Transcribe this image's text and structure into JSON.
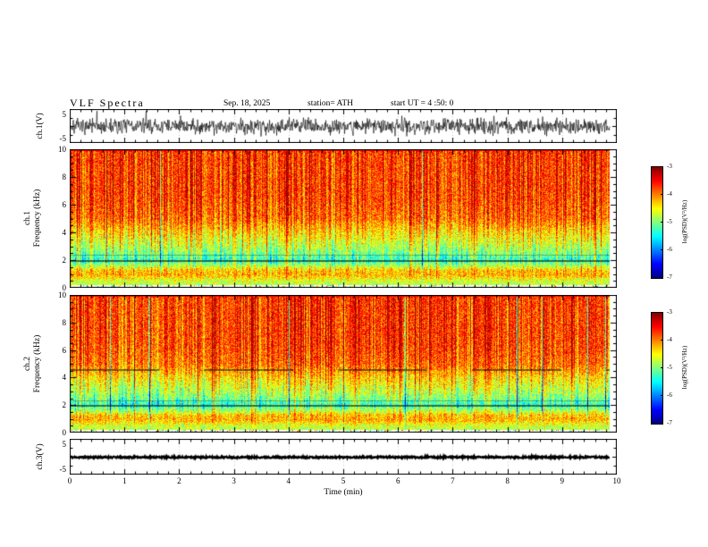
{
  "header": {
    "title": "VLF Spectra",
    "date": "Sep. 18, 2025",
    "station": "station= ATH",
    "start_ut": "start UT =  4 :50: 0"
  },
  "x_axis": {
    "label": "Time (min)",
    "tick_labels": [
      "0",
      "1",
      "2",
      "3",
      "4",
      "5",
      "6",
      "7",
      "8",
      "9",
      "10"
    ]
  },
  "panels": [
    {
      "name": "ch1_waveform",
      "ylabel": "ch.1(V)",
      "ytick_labels": [
        "5",
        "-5"
      ]
    },
    {
      "name": "ch1_spectrogram",
      "ylabel_line1": "ch.1",
      "ylabel_line2": "Frequency (kHz)",
      "ytick_labels": [
        "10",
        "8",
        "6",
        "4",
        "2",
        "0"
      ]
    },
    {
      "name": "ch2_spectrogram",
      "ylabel_line1": "ch.2",
      "ylabel_line2": "Frequency (kHz)",
      "ytick_labels": [
        "10",
        "8",
        "6",
        "4",
        "2",
        "0"
      ]
    },
    {
      "name": "ch3_waveform",
      "ylabel": "ch.3(V)",
      "ytick_labels": [
        "5",
        "-5"
      ]
    }
  ],
  "colorbar": {
    "label": "log(PSD)(V²/Hz)",
    "tick_labels": [
      "-3",
      "-4",
      "-5",
      "-6",
      "-7"
    ]
  },
  "chart_data": [
    {
      "type": "line",
      "panel": "ch.1 time series",
      "xlabel": "Time (min)",
      "xlim": [
        0,
        10
      ],
      "ylabel": "ch.1(V)",
      "ylim": [
        -5,
        5
      ],
      "yticks": [
        5,
        -5
      ],
      "description": "Dense black broadband-noise waveform, zero mean, peak amplitude about ±3.5 V, roughly constant envelope over the full 10 minutes"
    },
    {
      "type": "heatmap",
      "panel": "ch.1 spectrogram",
      "xlabel": "Time (min)",
      "xlim": [
        0,
        10
      ],
      "ylabel": "ch.1 Frequency (kHz)",
      "ylim": [
        0,
        10
      ],
      "yticks": [
        0,
        2,
        4,
        6,
        8,
        10
      ],
      "colorbar": {
        "label": "log(PSD)(V²/Hz)",
        "range": [
          -7,
          -3
        ],
        "ticks": [
          -3,
          -4,
          -5,
          -6,
          -7
        ],
        "colormap": "jet (red = high PSD, blue = low PSD)"
      },
      "bands": [
        {
          "freq_khz": "4-10",
          "psd_log": "-3.3 to -4.2",
          "appearance": "red/orange speckle with vertical streak texture"
        },
        {
          "freq_khz": "2.5-4",
          "psd_log": "-4.5 to -5",
          "appearance": "yellow-green"
        },
        {
          "freq_khz": "1.8-2.3",
          "psd_log": "about -5.3",
          "appearance": "green-cyan, thin dark absorption line near 2.0 kHz"
        },
        {
          "freq_khz": "0.6-1.3",
          "psd_log": "about -4",
          "appearance": "bright yellow/orange band"
        },
        {
          "freq_khz": "0-0.3",
          "psd_log": "no data",
          "appearance": "white with sparse colored speckles"
        }
      ],
      "features": "Vertical impulsive sferic streaks spanning all frequencies, distributed across the whole 10 min record; data ends slightly before 10 min"
    },
    {
      "type": "heatmap",
      "panel": "ch.2 spectrogram",
      "xlabel": "Time (min)",
      "xlim": [
        0,
        10
      ],
      "ylabel": "ch.2 Frequency (kHz)",
      "ylim": [
        0,
        10
      ],
      "yticks": [
        0,
        2,
        4,
        6,
        8,
        10
      ],
      "colorbar": {
        "label": "log(PSD)(V²/Hz)",
        "range": [
          -7,
          -3
        ],
        "ticks": [
          -3,
          -4,
          -5,
          -6,
          -7
        ],
        "colormap": "jet (red = high PSD, blue = low PSD)"
      },
      "bands": [
        {
          "freq_khz": "4-10",
          "psd_log": "-3.3 to -4.2",
          "appearance": "red/orange speckle with vertical streak texture"
        },
        {
          "freq_khz": "2.5-4",
          "psd_log": "-4.5 to -5",
          "appearance": "yellow-green"
        },
        {
          "freq_khz": "1.8-2.3",
          "psd_log": "about -5.3",
          "appearance": "green-cyan, thin dark line near 2.0 kHz"
        },
        {
          "freq_khz": "4.5-4.8",
          "psd_log": "depressed",
          "appearance": "intermittent dark horizontal segments"
        },
        {
          "freq_khz": "0.6-1.3",
          "psd_log": "about -4",
          "appearance": "bright yellow/orange band"
        },
        {
          "freq_khz": "0-0.3",
          "psd_log": "no data",
          "appearance": "white with sparse colored speckles"
        }
      ],
      "features": "Same sferic streak structure as ch.1"
    },
    {
      "type": "line",
      "panel": "ch.3 time series",
      "xlabel": "Time (min)",
      "xlim": [
        0,
        10
      ],
      "ylabel": "ch.3(V)",
      "ylim": [
        -5,
        5
      ],
      "yticks": [
        5,
        -5
      ],
      "description": "Flat thick black trace at approximately 0 V for the entire record (dead/quiet channel)"
    }
  ]
}
